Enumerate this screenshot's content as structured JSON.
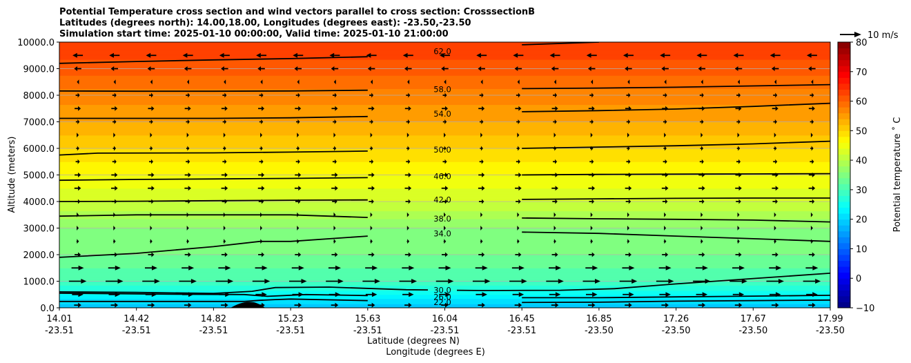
{
  "chart_data": {
    "type": "contour",
    "title_lines": [
      "Potential Temperature cross section and wind vectors parallel to cross section: CrosssectionB",
      "Latitudes (degrees north): 14.00,18.00, Longitudes (degrees east): -23.50,-23.50",
      "Simulation start time: 2025-01-10 00:00:00, Valid time: 2025-01-10 21:00:00"
    ],
    "ylabel": "Altitude (meters)",
    "xlabel_lines": [
      "Latitude (degrees N)",
      "Longitude (degrees E)"
    ],
    "ylim": [
      0,
      10000
    ],
    "y_ticks": [
      "0.0",
      "1000.0",
      "2000.0",
      "3000.0",
      "4000.0",
      "5000.0",
      "6000.0",
      "7000.0",
      "8000.0",
      "9000.0",
      "10000.0"
    ],
    "x_tick_lat": [
      "14.01",
      "14.42",
      "14.82",
      "15.23",
      "15.63",
      "16.04",
      "16.45",
      "16.85",
      "17.26",
      "17.67",
      "17.99"
    ],
    "x_tick_lon": [
      "-23.51",
      "-23.51",
      "-23.51",
      "-23.51",
      "-23.51",
      "-23.51",
      "-23.51",
      "-23.50",
      "-23.50",
      "-23.50",
      "-23.50"
    ],
    "grid": "horizontal",
    "colorbar": {
      "label": "Potential temperature ˚ C",
      "range": [
        -10,
        80
      ],
      "ticks": [
        "−10",
        "0",
        "10",
        "20",
        "30",
        "40",
        "50",
        "60",
        "70",
        "80"
      ],
      "colormap": "jet"
    },
    "quiver_key": "10 m/s",
    "contour_levels": [
      {
        "label": "22.0",
        "value": 22,
        "points": [
          [
            0,
            240
          ],
          [
            0.24,
            240
          ],
          [
            0.26,
            280
          ],
          [
            0.28,
            310
          ],
          [
            0.3,
            330
          ],
          [
            0.4,
            270
          ],
          [
            0.5,
            200
          ],
          [
            0.6,
            200
          ],
          [
            0.7,
            210
          ],
          [
            0.8,
            250
          ],
          [
            0.9,
            270
          ],
          [
            1,
            290
          ]
        ]
      },
      {
        "label": "26.0",
        "value": 26,
        "points": [
          [
            0,
            550
          ],
          [
            0.15,
            510
          ],
          [
            0.24,
            500
          ],
          [
            0.27,
            430
          ],
          [
            0.32,
            500
          ],
          [
            0.4,
            460
          ],
          [
            0.5,
            400
          ],
          [
            0.6,
            380
          ],
          [
            0.7,
            380
          ],
          [
            0.8,
            410
          ],
          [
            0.9,
            440
          ],
          [
            1,
            470
          ]
        ]
      },
      {
        "label": "30.0",
        "value": 30,
        "points": [
          [
            0,
            600
          ],
          [
            0.1,
            580
          ],
          [
            0.2,
            540
          ],
          [
            0.25,
            620
          ],
          [
            0.28,
            760
          ],
          [
            0.35,
            780
          ],
          [
            0.45,
            680
          ],
          [
            0.55,
            650
          ],
          [
            0.65,
            660
          ],
          [
            0.72,
            720
          ],
          [
            0.8,
            900
          ],
          [
            0.9,
            1100
          ],
          [
            1,
            1300
          ]
        ]
      },
      {
        "label": "34.0",
        "value": 34,
        "points": [
          [
            0,
            1900
          ],
          [
            0.1,
            2050
          ],
          [
            0.2,
            2300
          ],
          [
            0.26,
            2500
          ],
          [
            0.3,
            2500
          ],
          [
            0.4,
            2700
          ],
          [
            0.5,
            2800
          ],
          [
            0.6,
            2850
          ],
          [
            0.7,
            2800
          ],
          [
            0.8,
            2700
          ],
          [
            0.9,
            2600
          ],
          [
            1,
            2500
          ]
        ]
      },
      {
        "label": "38.0",
        "value": 38,
        "points": [
          [
            0,
            3450
          ],
          [
            0.1,
            3500
          ],
          [
            0.2,
            3500
          ],
          [
            0.3,
            3500
          ],
          [
            0.4,
            3400
          ],
          [
            0.5,
            3350
          ],
          [
            0.6,
            3380
          ],
          [
            0.7,
            3350
          ],
          [
            0.8,
            3330
          ],
          [
            0.9,
            3300
          ],
          [
            1,
            3230
          ]
        ]
      },
      {
        "label": "42.0",
        "value": 42,
        "points": [
          [
            0,
            4000
          ],
          [
            0.1,
            4010
          ],
          [
            0.2,
            4030
          ],
          [
            0.3,
            4050
          ],
          [
            0.4,
            4060
          ],
          [
            0.5,
            4070
          ],
          [
            0.6,
            4080
          ],
          [
            0.7,
            4100
          ],
          [
            0.8,
            4120
          ],
          [
            0.9,
            4130
          ],
          [
            1,
            4130
          ]
        ]
      },
      {
        "label": "46.0",
        "value": 46,
        "points": [
          [
            0,
            4800
          ],
          [
            0.1,
            4830
          ],
          [
            0.2,
            4850
          ],
          [
            0.3,
            4870
          ],
          [
            0.4,
            4900
          ],
          [
            0.5,
            4950
          ],
          [
            0.6,
            5000
          ],
          [
            0.7,
            5020
          ],
          [
            0.8,
            5030
          ],
          [
            0.9,
            5040
          ],
          [
            1,
            5050
          ]
        ]
      },
      {
        "label": "50.0",
        "value": 50,
        "points": [
          [
            0,
            5750
          ],
          [
            0.05,
            5820
          ],
          [
            0.2,
            5830
          ],
          [
            0.3,
            5860
          ],
          [
            0.4,
            5900
          ],
          [
            0.5,
            5950
          ],
          [
            0.6,
            6000
          ],
          [
            0.7,
            6050
          ],
          [
            0.8,
            6100
          ],
          [
            0.9,
            6170
          ],
          [
            1,
            6270
          ]
        ]
      },
      {
        "label": "54.0",
        "value": 54,
        "points": [
          [
            0,
            7130
          ],
          [
            0.1,
            7130
          ],
          [
            0.2,
            7130
          ],
          [
            0.3,
            7150
          ],
          [
            0.4,
            7200
          ],
          [
            0.5,
            7300
          ],
          [
            0.6,
            7380
          ],
          [
            0.7,
            7420
          ],
          [
            0.8,
            7480
          ],
          [
            0.9,
            7580
          ],
          [
            1,
            7700
          ]
        ]
      },
      {
        "label": "58.0",
        "value": 58,
        "points": [
          [
            0,
            8160
          ],
          [
            0.1,
            8150
          ],
          [
            0.2,
            8150
          ],
          [
            0.3,
            8160
          ],
          [
            0.4,
            8190
          ],
          [
            0.5,
            8220
          ],
          [
            0.6,
            8250
          ],
          [
            0.7,
            8270
          ],
          [
            0.8,
            8300
          ],
          [
            0.9,
            8350
          ],
          [
            1,
            8400
          ]
        ]
      },
      {
        "label": "62.0",
        "value": 62,
        "points": [
          [
            0,
            9200
          ],
          [
            0.1,
            9270
          ],
          [
            0.2,
            9330
          ],
          [
            0.3,
            9380
          ],
          [
            0.4,
            9450
          ],
          [
            0.5,
            9650
          ],
          [
            0.6,
            9900
          ],
          [
            0.7,
            10000
          ]
        ]
      }
    ],
    "theta_profile": [
      [
        0,
        18
      ],
      [
        500,
        24
      ],
      [
        1000,
        30
      ],
      [
        2000,
        34
      ],
      [
        3000,
        36
      ],
      [
        4000,
        42
      ],
      [
        5000,
        46
      ],
      [
        6000,
        50
      ],
      [
        7000,
        54
      ],
      [
        8000,
        57
      ],
      [
        9000,
        61
      ],
      [
        10000,
        64
      ]
    ],
    "wind_rows": [
      {
        "z": 100,
        "u": 3.5
      },
      {
        "z": 500,
        "u": 5.5
      },
      {
        "z": 1000,
        "u": 8.5
      },
      {
        "z": 1500,
        "u": 6.0
      },
      {
        "z": 2000,
        "u": 3.0
      },
      {
        "z": 2500,
        "u": 1.2
      },
      {
        "z": 3000,
        "u": 1.0
      },
      {
        "z": 3500,
        "u": 1.0
      },
      {
        "z": 4000,
        "u": 2.5
      },
      {
        "z": 4500,
        "u": 3.2
      },
      {
        "z": 5000,
        "u": 3.0
      },
      {
        "z": 5500,
        "u": 2.0
      },
      {
        "z": 6000,
        "u": 1.5
      },
      {
        "z": 6500,
        "u": 1.0
      },
      {
        "z": 7000,
        "u": 1.8
      },
      {
        "z": 7500,
        "u": 3.0
      },
      {
        "z": 8000,
        "u": 2.0
      },
      {
        "z": 8500,
        "u": -0.8
      },
      {
        "z": 9000,
        "u": -3.5
      },
      {
        "z": 9500,
        "u": -5.0
      }
    ]
  }
}
